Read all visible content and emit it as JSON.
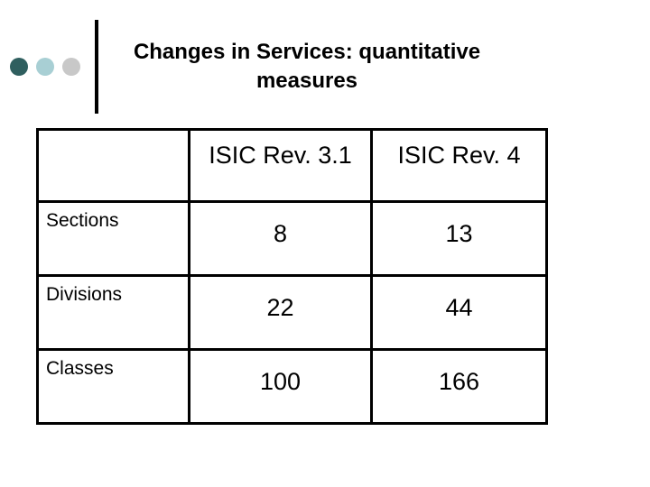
{
  "colors": {
    "dot_1": "#2f5f5f",
    "dot_2": "#a8cfd4",
    "dot_3": "#c8c8c8"
  },
  "title": {
    "line1": "Changes in Services: quantitative",
    "line2": "measures"
  },
  "table": {
    "columns": [
      "",
      "ISIC Rev. 3.1",
      "ISIC Rev. 4"
    ],
    "rows": [
      {
        "label": "Sections",
        "rev31": "8",
        "rev4": "13"
      },
      {
        "label": "Divisions",
        "rev31": "22",
        "rev4": "44"
      },
      {
        "label": "Classes",
        "rev31": "100",
        "rev4": "166"
      }
    ]
  }
}
